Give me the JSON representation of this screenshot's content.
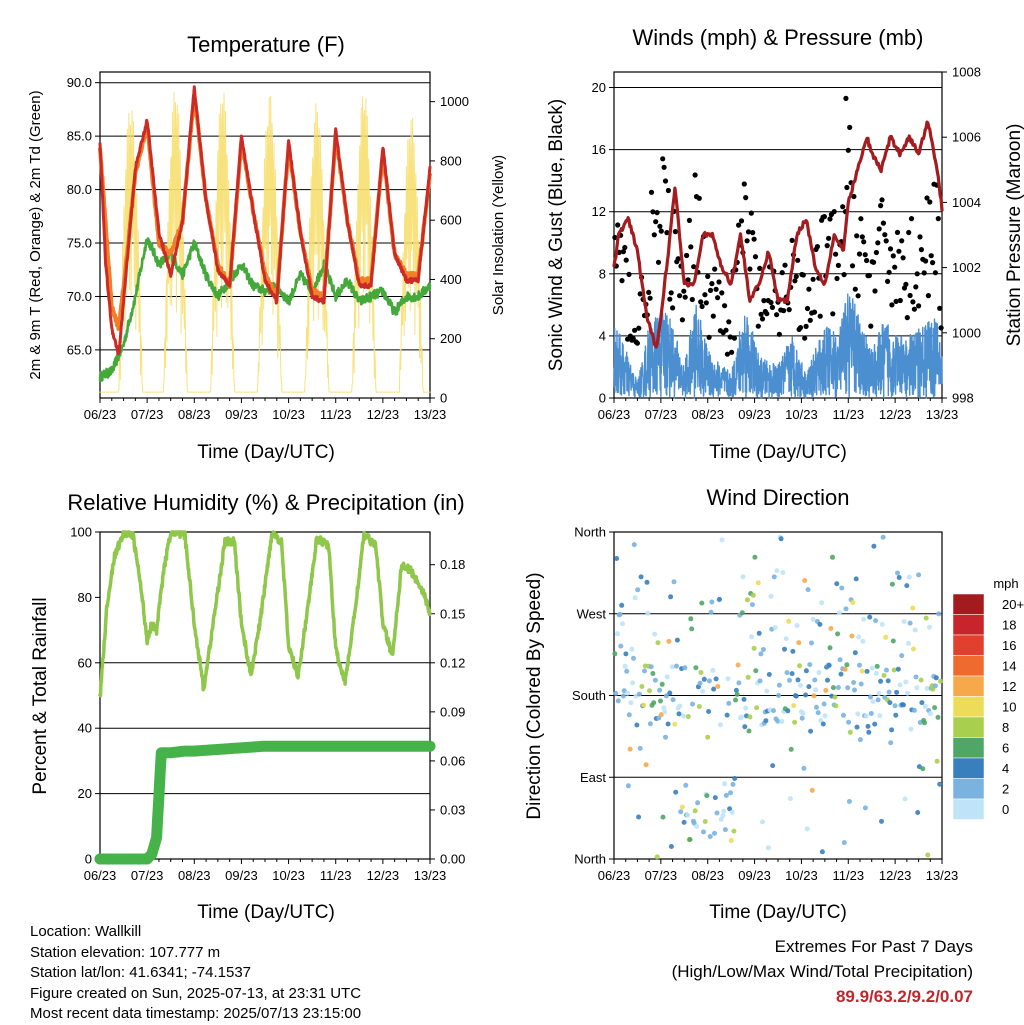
{
  "x_ticks": [
    "06/23",
    "07/23",
    "08/23",
    "09/23",
    "10/23",
    "11/23",
    "12/23",
    "13/23"
  ],
  "x_label": "Time (Day/UTC)",
  "panels": {
    "temperature": {
      "title": "Temperature (F)",
      "left_label": "2m & 9m T (Red, Orange) & 2m Td (Green)",
      "right_label": "Solar Insolation (Yellow)",
      "left_ticks": [
        "65.0",
        "70.0",
        "75.0",
        "80.0",
        "85.0",
        "90.0"
      ],
      "right_ticks": [
        "0",
        "200",
        "400",
        "600",
        "800",
        "1000"
      ]
    },
    "winds": {
      "title": "Winds (mph) & Pressure (mb)",
      "left_label": "Sonic Wind & Gust (Blue, Black)",
      "right_label": "Station Pressure (Maroon)",
      "left_ticks": [
        "0",
        "4",
        "8",
        "12",
        "16",
        "20"
      ],
      "right_ticks": [
        "998",
        "1000",
        "1002",
        "1004",
        "1006",
        "1008"
      ]
    },
    "humidity": {
      "title": "Relative Humidity (%) & Precipitation (in)",
      "left_label": "Percent & Total Rainfall",
      "left_ticks": [
        "0",
        "20",
        "40",
        "60",
        "80",
        "100"
      ],
      "right_ticks": [
        "0.00",
        "0.03",
        "0.06",
        "0.09",
        "0.12",
        "0.15",
        "0.18"
      ]
    },
    "direction": {
      "title": "Wind Direction",
      "left_label": "Direction (Colored By Speed)",
      "left_ticks": [
        "North",
        "East",
        "South",
        "West",
        "North"
      ],
      "legend_title": "mph",
      "legend_labels": [
        "20+",
        "18",
        "16",
        "14",
        "12",
        "10",
        "8",
        "6",
        "4",
        "2",
        "0"
      ],
      "legend_colors": [
        "#a31a1f",
        "#c7242b",
        "#e0402d",
        "#ef6a2e",
        "#f7a84a",
        "#ecdc5a",
        "#a8cf4d",
        "#4fa665",
        "#3a7fbd",
        "#7ab3e0",
        "#bfe3f7"
      ]
    }
  },
  "chart_data": [
    {
      "type": "line",
      "title": "Temperature (F)",
      "x": [
        "06/23",
        "07/23",
        "08/23",
        "09/23",
        "10/23",
        "11/23",
        "12/23",
        "13/23"
      ],
      "ylim": [
        60.5,
        91
      ],
      "y2lim": [
        0,
        1100
      ],
      "grid": true,
      "series": [
        {
          "name": "2m T",
          "color": "#cc2a26",
          "axis": "left",
          "x": [
            0,
            0.12,
            0.25,
            0.4,
            0.55,
            0.75,
            1.0,
            1.25,
            1.5,
            1.75,
            2.0,
            2.25,
            2.5,
            2.75,
            3.0,
            3.25,
            3.5,
            3.75,
            4.0,
            4.25,
            4.5,
            4.75,
            5.0,
            5.25,
            5.5,
            5.75,
            6.0,
            6.25,
            6.5,
            6.75,
            7.0
          ],
          "values": [
            84.5,
            73,
            67,
            64.5,
            72,
            82,
            86.5,
            76,
            72,
            77,
            89.5,
            79,
            72.5,
            71,
            85,
            78,
            71.5,
            69.5,
            84.5,
            76,
            70,
            69.5,
            85.5,
            77,
            71,
            71,
            84,
            74,
            71.5,
            71.5,
            82
          ]
        },
        {
          "name": "9m T",
          "color": "#f07f28",
          "axis": "left",
          "x": [
            0,
            0.25,
            0.4,
            0.55,
            0.75,
            1.0,
            1.25,
            1.5,
            1.75,
            2.0,
            2.25,
            2.5,
            2.75,
            3.0,
            3.25,
            3.5,
            3.75,
            4.0,
            4.25,
            4.5,
            4.75,
            5.0,
            5.25,
            5.5,
            5.75,
            6.0,
            6.25,
            6.5,
            6.75,
            7.0
          ],
          "values": [
            84,
            69,
            67,
            73,
            81.5,
            86,
            75,
            74,
            77,
            89,
            79,
            73,
            71,
            84.5,
            78,
            72,
            70,
            84,
            76,
            70.5,
            70,
            85,
            77,
            71.5,
            71.5,
            83.5,
            74,
            72,
            72,
            81.5
          ]
        },
        {
          "name": "2m Td",
          "color": "#44a83b",
          "axis": "left",
          "x": [
            0,
            0.25,
            0.5,
            0.75,
            1.0,
            1.25,
            1.5,
            1.75,
            2.0,
            2.25,
            2.5,
            2.75,
            3.0,
            3.25,
            3.5,
            3.75,
            4.0,
            4.25,
            4.5,
            4.75,
            5.0,
            5.25,
            5.5,
            5.75,
            6.0,
            6.25,
            6.5,
            6.75,
            7.0
          ],
          "values": [
            62.5,
            63,
            65.5,
            70,
            75.5,
            73,
            74,
            72,
            75,
            72,
            70,
            71.5,
            73,
            71,
            70.5,
            71,
            69.5,
            72,
            70.5,
            73,
            70,
            71.5,
            69.5,
            70,
            70.5,
            68.5,
            70,
            70,
            71
          ]
        },
        {
          "name": "Solar Insolation",
          "color": "#f7df6f",
          "axis": "right",
          "peaks": [
            1000,
            1050,
            1050,
            1030,
            1000,
            1050,
            960
          ],
          "peak_x": [
            0.65,
            1.6,
            2.6,
            3.6,
            4.6,
            5.6,
            6.6
          ]
        }
      ]
    },
    {
      "type": "line",
      "title": "Winds (mph) & Pressure (mb)",
      "x": [
        "06/23",
        "07/23",
        "08/23",
        "09/23",
        "10/23",
        "11/23",
        "12/23",
        "13/23"
      ],
      "ylim": [
        0,
        21
      ],
      "y2lim": [
        998,
        1008
      ],
      "grid": true,
      "series": [
        {
          "name": "Station Pressure",
          "color": "#a31c1f",
          "axis": "right",
          "x": [
            0,
            0.1,
            0.3,
            0.5,
            0.7,
            0.9,
            1.0,
            1.2,
            1.3,
            1.5,
            1.7,
            1.9,
            2.1,
            2.3,
            2.5,
            2.7,
            2.9,
            3.1,
            3.3,
            3.5,
            3.7,
            3.9,
            4.1,
            4.3,
            4.5,
            4.7,
            4.9,
            5.0,
            5.2,
            5.4,
            5.5,
            5.7,
            5.9,
            6.1,
            6.3,
            6.5,
            6.7,
            6.9,
            7.0
          ],
          "values": [
            1002,
            1003,
            1003.5,
            1002.5,
            1000.5,
            999.5,
            1000.5,
            1003,
            1004.5,
            1001.5,
            1001.5,
            1003,
            1003,
            1002,
            1001.5,
            1003,
            1001,
            1001.5,
            1002.5,
            1001,
            1001,
            1003,
            1003.5,
            1002,
            1001.5,
            1003,
            1002.5,
            1004,
            1005,
            1006,
            1005.5,
            1005,
            1006,
            1005.5,
            1006,
            1005.5,
            1006.5,
            1005,
            1003.8
          ]
        },
        {
          "name": "Sonic Wind",
          "color": "#4b8fd1",
          "axis": "left",
          "typical_range": [
            0,
            7
          ]
        },
        {
          "name": "Gust",
          "color": "#000000",
          "axis": "left",
          "typical_range": [
            2,
            14
          ],
          "max": 19.3
        }
      ]
    },
    {
      "type": "line",
      "title": "Relative Humidity (%) & Precipitation (in)",
      "x": [
        "06/23",
        "07/23",
        "08/23",
        "09/23",
        "10/23",
        "11/23",
        "12/23",
        "13/23"
      ],
      "ylim": [
        0,
        100
      ],
      "y2lim": [
        0,
        0.2
      ],
      "grid": true,
      "series": [
        {
          "name": "Relative Humidity",
          "color": "#8fc74a",
          "axis": "left",
          "x": [
            0,
            0.15,
            0.3,
            0.5,
            0.7,
            0.85,
            1.0,
            1.1,
            1.2,
            1.35,
            1.5,
            1.65,
            1.8,
            2.0,
            2.2,
            2.4,
            2.65,
            2.85,
            3.0,
            3.2,
            3.4,
            3.65,
            3.85,
            4.0,
            4.2,
            4.4,
            4.6,
            4.85,
            5.0,
            5.2,
            5.4,
            5.6,
            5.85,
            6.0,
            6.2,
            6.4,
            6.6,
            6.85,
            7.0
          ],
          "values": [
            49,
            78,
            92,
            100,
            99,
            85,
            67,
            72,
            70,
            88,
            100,
            100,
            99,
            72,
            52,
            72,
            97,
            97,
            72,
            56,
            73,
            100,
            97,
            65,
            56,
            76,
            98,
            96,
            64,
            54,
            75,
            99,
            96,
            72,
            62,
            90,
            88,
            82,
            75
          ]
        },
        {
          "name": "Total Precipitation",
          "color": "#45b34a",
          "axis": "right",
          "x": [
            0,
            0.4,
            0.8,
            1.0,
            1.1,
            1.2,
            1.3,
            1.5,
            1.8,
            2.0,
            2.5,
            3.0,
            3.5,
            4.0,
            5.0,
            6.0,
            7.0
          ],
          "values": [
            0,
            0,
            0,
            0,
            0.003,
            0.013,
            0.065,
            0.065,
            0.066,
            0.066,
            0.067,
            0.068,
            0.069,
            0.069,
            0.069,
            0.069,
            0.069
          ]
        }
      ]
    },
    {
      "type": "scatter",
      "title": "Wind Direction",
      "x": [
        "06/23",
        "07/23",
        "08/23",
        "09/23",
        "10/23",
        "11/23",
        "12/23",
        "13/23"
      ],
      "yticks": [
        "North",
        "East",
        "South",
        "West",
        "North"
      ],
      "ylim": [
        0,
        360
      ],
      "grid": true,
      "color_scale": {
        "title": "mph",
        "levels": [
          "0",
          "2",
          "4",
          "6",
          "8",
          "10",
          "12",
          "14",
          "16",
          "18",
          "20+"
        ]
      },
      "dominant_direction": "South"
    }
  ],
  "footer": {
    "location": "Location: Wallkill",
    "elevation": "Station elevation: 107.777 m",
    "latlon": "Station lat/lon: 41.6341; -74.1537",
    "created": "Figure created on Sun, 2025-07-13, at 23:31 UTC",
    "recent": "Most recent data timestamp: 2025/07/13 23:15:00"
  },
  "extremes": {
    "line1": "Extremes For Past 7 Days",
    "line2": "(High/Low/Max Wind/Total Precipitation)",
    "values": "89.9/63.2/9.2/0.07"
  }
}
